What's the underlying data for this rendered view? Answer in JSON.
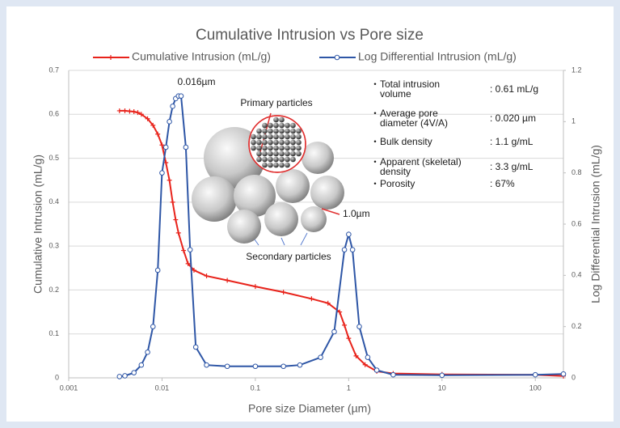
{
  "chart_data": {
    "type": "line",
    "title": "Cumulative Intrusion vs Pore size",
    "x_label": "Pore size Diameter (µm)",
    "y_label": "Cumulative Intrusion (mL/g)",
    "y2_label": "Log Differential Intrusion (mL/g)",
    "log_x": true,
    "grid": true,
    "legend": "top",
    "xlim": [
      0.001,
      200
    ],
    "xticks": [
      0.001,
      0.01,
      0.1,
      1,
      10,
      100
    ],
    "ylim": [
      0,
      0.7
    ],
    "yticks": [
      0,
      0.1,
      0.2,
      0.3,
      0.4,
      0.5,
      0.6,
      0.7
    ],
    "y2lim": [
      0,
      1.2
    ],
    "y2ticks": [
      0,
      0.2,
      0.4,
      0.6,
      0.8,
      1,
      1.2
    ],
    "series": [
      {
        "name": "Cumulative Intrusion (mL/g)",
        "color": "#e8231b",
        "marker": "plus",
        "x": [
          0.0035,
          0.004,
          0.0045,
          0.005,
          0.0055,
          0.006,
          0.007,
          0.008,
          0.009,
          0.01,
          0.011,
          0.012,
          0.013,
          0.014,
          0.015,
          0.017,
          0.019,
          0.022,
          0.03,
          0.05,
          0.1,
          0.2,
          0.4,
          0.6,
          0.8,
          0.9,
          1.0,
          1.2,
          1.5,
          2,
          3,
          10,
          100,
          200
        ],
        "values": [
          0.608,
          0.608,
          0.607,
          0.606,
          0.604,
          0.6,
          0.59,
          0.575,
          0.555,
          0.53,
          0.49,
          0.45,
          0.4,
          0.36,
          0.33,
          0.29,
          0.26,
          0.245,
          0.232,
          0.222,
          0.208,
          0.195,
          0.18,
          0.17,
          0.15,
          0.12,
          0.09,
          0.05,
          0.03,
          0.015,
          0.01,
          0.008,
          0.007,
          0.004
        ]
      },
      {
        "name": "Log Differential Intrusion (mL/g)",
        "color": "#2e56a6",
        "marker": "circle",
        "axis": "y2",
        "x": [
          0.0035,
          0.004,
          0.005,
          0.006,
          0.007,
          0.008,
          0.009,
          0.01,
          0.011,
          0.012,
          0.013,
          0.014,
          0.015,
          0.016,
          0.018,
          0.02,
          0.023,
          0.03,
          0.05,
          0.1,
          0.2,
          0.3,
          0.5,
          0.7,
          0.9,
          1.0,
          1.1,
          1.3,
          1.6,
          2,
          3,
          10,
          100,
          200
        ],
        "values": [
          0.005,
          0.008,
          0.02,
          0.05,
          0.1,
          0.2,
          0.42,
          0.8,
          0.9,
          1.0,
          1.06,
          1.09,
          1.1,
          1.1,
          0.9,
          0.5,
          0.12,
          0.05,
          0.045,
          0.045,
          0.045,
          0.05,
          0.08,
          0.18,
          0.5,
          0.56,
          0.5,
          0.2,
          0.08,
          0.03,
          0.012,
          0.01,
          0.012,
          0.015
        ]
      }
    ],
    "annotations": [
      "0.016µm",
      "Primary particles",
      "Secondary particles",
      "1.0µm"
    ],
    "properties": [
      {
        "label": [
          "・Total intrusion",
          "volume"
        ],
        "value": ": 0.61 mL/g"
      },
      {
        "label": [
          "・Average pore",
          "diameter (4V/A)"
        ],
        "value": ": 0.020 µm"
      },
      {
        "label": [
          "・Bulk density"
        ],
        "value": ": 1.1 g/mL"
      },
      {
        "label": [
          "・Apparent (skeletal)",
          "density"
        ],
        "value": ": 3.3 g/mL"
      },
      {
        "label": [
          "・Porosity"
        ],
        "value": ": 67%"
      }
    ]
  }
}
